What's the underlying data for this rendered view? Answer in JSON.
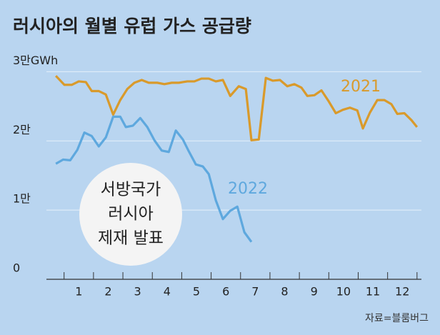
{
  "chart_data": {
    "type": "line",
    "title": "러시아의 월별 유럽 가스 공급량",
    "source": "자료=블룸버그",
    "annotation": [
      "서방국가",
      "러시아",
      "제재 발표"
    ],
    "xlim": [
      -0.1,
      12.65
    ],
    "xticks": [
      1,
      2,
      3,
      4,
      5,
      6,
      7,
      8,
      9,
      10,
      11,
      12
    ],
    "ylim": [
      0,
      3.2
    ],
    "yticks": [
      0,
      {
        "value": 1,
        "label": "1만"
      },
      {
        "value": 2,
        "label": "2만"
      },
      {
        "value": 3,
        "label": "3만GWh"
      }
    ],
    "grid": true,
    "series": [
      {
        "name": "2021",
        "color": "#d99a2b",
        "x": [
          0.22,
          0.51,
          0.76,
          1,
          1.24,
          1.44,
          1.68,
          1.92,
          2.17,
          2.41,
          2.65,
          2.89,
          3.14,
          3.38,
          3.67,
          3.91,
          4.16,
          4.4,
          4.69,
          4.93,
          5.17,
          5.42,
          5.66,
          5.9,
          6.15,
          6.44,
          6.68,
          6.87,
          7.12,
          7.36,
          7.6,
          7.84,
          8.09,
          8.33,
          8.57,
          8.77,
          9.01,
          9.25,
          9.5,
          9.74,
          9.98,
          10.22,
          10.47,
          10.66,
          10.9,
          11.15,
          11.39,
          11.63,
          11.83,
          12.07,
          12.31,
          12.5
        ],
        "values": [
          2.94,
          2.81,
          2.81,
          2.86,
          2.85,
          2.72,
          2.72,
          2.67,
          2.38,
          2.59,
          2.75,
          2.84,
          2.88,
          2.84,
          2.84,
          2.82,
          2.84,
          2.84,
          2.86,
          2.86,
          2.9,
          2.9,
          2.86,
          2.88,
          2.65,
          2.79,
          2.75,
          2.01,
          2.02,
          2.91,
          2.87,
          2.88,
          2.79,
          2.82,
          2.77,
          2.65,
          2.66,
          2.73,
          2.57,
          2.4,
          2.45,
          2.48,
          2.44,
          2.18,
          2.41,
          2.59,
          2.59,
          2.53,
          2.39,
          2.4,
          2.3,
          2.2
        ]
      },
      {
        "name": "2022",
        "color": "#5ea8de",
        "x": [
          0.22,
          0.47,
          0.71,
          0.95,
          1.19,
          1.44,
          1.68,
          1.92,
          2.17,
          2.41,
          2.6,
          2.84,
          3.09,
          3.33,
          3.57,
          3.82,
          4.06,
          4.3,
          4.54,
          4.74,
          4.98,
          5.22,
          5.42,
          5.66,
          5.9,
          6.15,
          6.39,
          6.63,
          6.87
        ],
        "values": [
          1.67,
          1.73,
          1.72,
          1.87,
          2.12,
          2.07,
          1.92,
          2.05,
          2.35,
          2.35,
          2.2,
          2.22,
          2.33,
          2.2,
          2.01,
          1.86,
          1.84,
          2.15,
          2.02,
          1.85,
          1.66,
          1.63,
          1.52,
          1.14,
          0.87,
          0.99,
          1.05,
          0.68,
          0.54
        ]
      }
    ]
  }
}
